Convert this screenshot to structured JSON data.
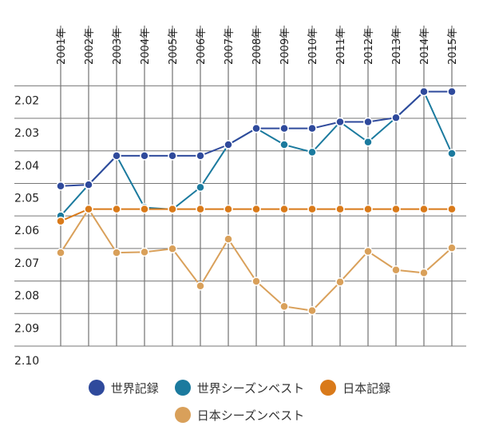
{
  "chart_data": {
    "type": "line",
    "title": "",
    "categories": [
      "2001年",
      "2002年",
      "2003年",
      "2004年",
      "2005年",
      "2006年",
      "2007年",
      "2008年",
      "2009年",
      "2010年",
      "2011年",
      "2012年",
      "2013年",
      "2014年",
      "2015年"
    ],
    "ylim": [
      2.1,
      2.015
    ],
    "y_ticks": [
      "2.02",
      "2.03",
      "2.04",
      "2.05",
      "2.06",
      "2.07",
      "2.08",
      "2.09",
      "2.10"
    ],
    "y_tick_values": [
      2.02,
      2.03,
      2.04,
      2.05,
      2.06,
      2.07,
      2.08,
      2.09,
      2.1
    ],
    "y_inverted": true,
    "grid": true,
    "legend_position": "bottom",
    "series": [
      {
        "name": "世界記録",
        "color": "#2f4a9c",
        "values": [
          2.0508,
          2.0504,
          2.0415,
          2.0415,
          2.0415,
          2.0415,
          2.0381,
          2.0331,
          2.0331,
          2.0331,
          2.0311,
          2.0311,
          2.0298,
          2.0218,
          2.0218
        ]
      },
      {
        "name": "世界シーズンベスト",
        "color": "#1b7a9e",
        "values": [
          2.06,
          2.0504,
          2.0415,
          2.0574,
          2.058,
          2.0512,
          2.0381,
          2.0331,
          2.0381,
          2.0404,
          2.0311,
          2.0373,
          2.0298,
          2.0218,
          2.0408
        ]
      },
      {
        "name": "日本記録",
        "color": "#d97a1a",
        "values": [
          2.0616,
          2.0579,
          2.0579,
          2.0579,
          2.0579,
          2.0579,
          2.0579,
          2.0579,
          2.0579,
          2.0579,
          2.0579,
          2.0579,
          2.0579,
          2.0579,
          2.0579
        ]
      },
      {
        "name": "日本シーズンベスト",
        "color": "#d9a05a",
        "values": [
          2.0713,
          2.0579,
          2.0713,
          2.0711,
          2.0701,
          2.0815,
          2.0671,
          2.0801,
          2.0878,
          2.0891,
          2.0803,
          2.0709,
          2.0766,
          2.0775,
          2.0698
        ]
      }
    ]
  }
}
